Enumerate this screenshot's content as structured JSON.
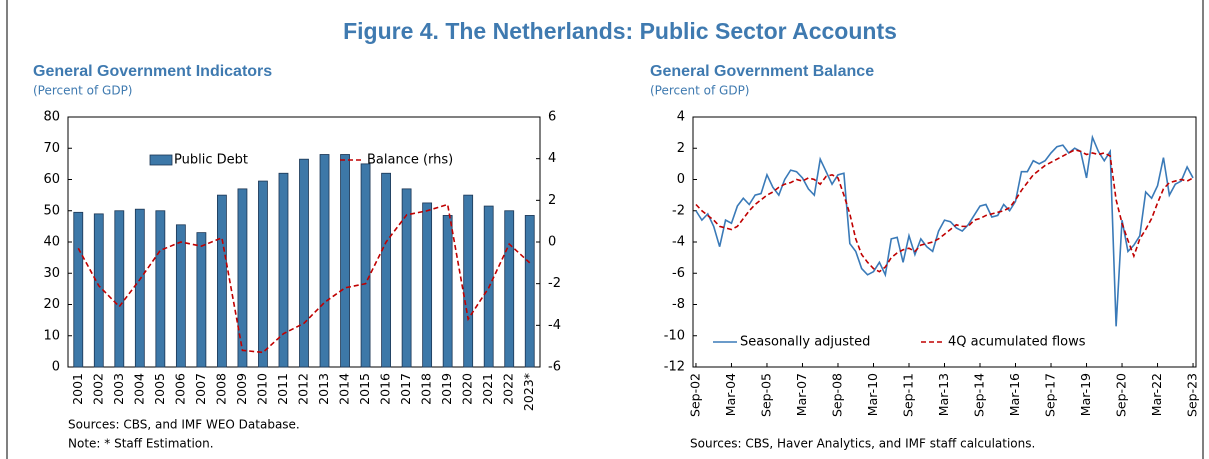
{
  "title": "Figure 4. The Netherlands: Public Sector Accounts",
  "chart_data": [
    {
      "type": "bar",
      "title": "General Government Indicators",
      "subtitle": "(Percent of GDP)",
      "categories": [
        "2001",
        "2002",
        "2003",
        "2004",
        "2005",
        "2006",
        "2007",
        "2008",
        "2009",
        "2010",
        "2011",
        "2012",
        "2013",
        "2014",
        "2015",
        "2016",
        "2017",
        "2018",
        "2019",
        "2020",
        "2021",
        "2022",
        "2023*"
      ],
      "series": [
        {
          "name": "Public Debt",
          "type": "bar",
          "color": "#3d78a8",
          "values": [
            49.5,
            49,
            50,
            50.5,
            50,
            45.5,
            43,
            55,
            57,
            59.5,
            62,
            66.5,
            68,
            68,
            65,
            62,
            57,
            52.5,
            48.5,
            55,
            51.5,
            50,
            48.5
          ]
        },
        {
          "name": "Balance (rhs)",
          "type": "line",
          "axis": "y2",
          "color": "#c00000",
          "dashed": true,
          "values": [
            -0.3,
            -2.1,
            -3.1,
            -1.8,
            -0.4,
            0,
            -0.2,
            0.2,
            -5.2,
            -5.3,
            -4.4,
            -3.9,
            -2.9,
            -2.2,
            -2,
            0,
            1.3,
            1.5,
            1.8,
            -3.7,
            -2.2,
            -0.1,
            -1
          ]
        }
      ],
      "ylim": [
        0,
        80
      ],
      "yticks": [
        0,
        10,
        20,
        30,
        40,
        50,
        60,
        70,
        80
      ],
      "y2lim": [
        -6,
        6
      ],
      "y2ticks": [
        -6,
        -4,
        -2,
        0,
        2,
        4,
        6
      ],
      "legend": "top",
      "notes": [
        "Sources: CBS, and IMF WEO Database.",
        "Note: * Staff Estimation."
      ]
    },
    {
      "type": "line",
      "title": "General Government Balance",
      "subtitle": "(Percent of GDP)",
      "categories": [
        "Sep-02",
        null,
        null,
        null,
        null,
        null,
        "Mar-04",
        null,
        null,
        null,
        null,
        null,
        "Sep-05",
        null,
        null,
        null,
        null,
        null,
        "Mar-07",
        null,
        null,
        null,
        null,
        null,
        "Sep-08",
        null,
        null,
        null,
        null,
        null,
        "Mar-10",
        null,
        null,
        null,
        null,
        null,
        "Sep-11",
        null,
        null,
        null,
        null,
        null,
        "Mar-13",
        null,
        null,
        null,
        null,
        null,
        "Sep-14",
        null,
        null,
        null,
        null,
        null,
        "Mar-16",
        null,
        null,
        null,
        null,
        null,
        "Sep-17",
        null,
        null,
        null,
        null,
        null,
        "Mar-19",
        null,
        null,
        null,
        null,
        null,
        "Sep-20",
        null,
        null,
        null,
        null,
        null,
        "Mar-22",
        null,
        null,
        null,
        null,
        null,
        "Sep-23"
      ],
      "series": [
        {
          "name": "Seasonally adjusted",
          "color": "#3a7ab8",
          "dashed": false,
          "values": [
            -2,
            -2.6,
            -2.2,
            -3,
            -4.3,
            -2.6,
            -2.8,
            -1.7,
            -1.2,
            -1.6,
            -1,
            -0.9,
            0.3,
            -0.5,
            -1,
            0,
            0.6,
            0.5,
            0.1,
            -0.6,
            -1,
            1.3,
            0.5,
            -0.3,
            0.3,
            0.4,
            -4.1,
            -4.6,
            -5.7,
            -6.1,
            -5.9,
            -5.3,
            -6.1,
            -3.8,
            -3.7,
            -5.3,
            -3.6,
            -4.8,
            -3.8,
            -4.3,
            -4.6,
            -3.3,
            -2.6,
            -2.7,
            -3.1,
            -3.3,
            -2.9,
            -2.3,
            -1.7,
            -1.6,
            -2.4,
            -2.3,
            -1.6,
            -2,
            -1.4,
            0.5,
            0.5,
            1.2,
            1,
            1.2,
            1.7,
            2.1,
            2.2,
            1.7,
            2,
            1.8,
            0.1,
            2.7,
            1.8,
            1.2,
            1.8,
            -9.4,
            -2.6,
            -4.6,
            -4.2,
            -3.6,
            -0.8,
            -1.2,
            -0.4,
            1.4,
            -1,
            -0.3,
            -0.1,
            0.8,
            0.1
          ]
        },
        {
          "name": "4Q acumulated flows",
          "color": "#c00000",
          "dashed": true,
          "values": [
            -1.6,
            -2,
            -2.3,
            -2.6,
            -3,
            -3.1,
            -3.2,
            -3,
            -2.5,
            -2,
            -1.6,
            -1.3,
            -1,
            -0.8,
            -0.5,
            -0.3,
            -0.2,
            0,
            -0.1,
            0.1,
            0,
            -0.3,
            0.2,
            0.3,
            0.1,
            -1,
            -2.2,
            -3.8,
            -4.8,
            -5.3,
            -5.7,
            -5.9,
            -5.6,
            -5,
            -4.7,
            -4.5,
            -4.4,
            -4.6,
            -4.2,
            -4.1,
            -4,
            -3.8,
            -3.5,
            -3.2,
            -2.9,
            -3,
            -3,
            -2.6,
            -2.5,
            -2.3,
            -2.2,
            -2.1,
            -2,
            -1.8,
            -1.3,
            -0.7,
            -0.2,
            0.3,
            0.6,
            0.9,
            1.1,
            1.3,
            1.5,
            1.7,
            1.9,
            1.8,
            1.6,
            1.7,
            1.6,
            1.7,
            1.5,
            -1.3,
            -2.8,
            -3.9,
            -4.9,
            -3.8,
            -3.2,
            -2.5,
            -1.5,
            -0.6,
            -0.2,
            -0.1,
            0,
            -0.1,
            0.1
          ]
        }
      ],
      "ylim": [
        -12,
        4
      ],
      "yticks": [
        -12,
        -10,
        -8,
        -6,
        -4,
        -2,
        0,
        2,
        4
      ],
      "legend": "bottom",
      "notes": [
        "Sources: CBS, Haver Analytics, and IMF staff calculations."
      ]
    }
  ]
}
